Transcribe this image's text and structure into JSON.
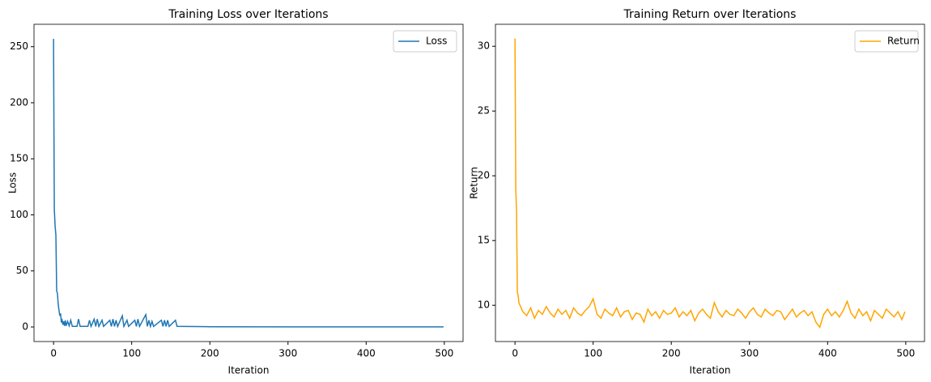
{
  "chart_data": [
    {
      "type": "line",
      "title": "Training Loss over Iterations",
      "x_label": "Iteration",
      "y_label": "Loss",
      "xlim": [
        -25,
        524
      ],
      "ylim": [
        -13,
        270
      ],
      "xticks": [
        0,
        100,
        200,
        300,
        400,
        500
      ],
      "yticks": [
        0,
        50,
        100,
        150,
        200,
        250
      ],
      "legend": "upper right",
      "series": [
        {
          "name": "Loss",
          "color": "#1f77b4",
          "x": [
            0,
            1,
            2,
            3,
            4,
            5,
            6,
            7,
            8,
            9,
            10,
            11,
            12,
            13,
            14,
            15,
            16,
            18,
            20,
            22,
            24,
            30,
            32,
            34,
            44,
            46,
            48,
            52,
            54,
            56,
            58,
            62,
            64,
            72,
            74,
            76,
            78,
            80,
            82,
            88,
            90,
            94,
            96,
            104,
            106,
            108,
            110,
            118,
            120,
            122,
            124,
            126,
            128,
            138,
            140,
            142,
            144,
            146,
            148,
            156,
            158,
            200,
            300,
            400,
            499
          ],
          "values": [
            257,
            105,
            90,
            82,
            32,
            30,
            20,
            15,
            10,
            12,
            4,
            6,
            2,
            5,
            1,
            6,
            1,
            5,
            1,
            6,
            0.5,
            0.5,
            7,
            0.5,
            0.5,
            6,
            0.5,
            7,
            0.5,
            7,
            0.5,
            6,
            0.5,
            6,
            0.5,
            7,
            0.5,
            6,
            0.5,
            10,
            0.5,
            6,
            0.5,
            6,
            0.5,
            7,
            0.5,
            11,
            0.5,
            6,
            0.5,
            5,
            0.5,
            6,
            0.5,
            6,
            0.5,
            6,
            0.5,
            6,
            0.5,
            0.2,
            0.1,
            0.1,
            0.1
          ]
        }
      ]
    },
    {
      "type": "line",
      "title": "Training Return over Iterations",
      "x_label": "Iteration",
      "y_label": "Return",
      "xlim": [
        -25,
        524
      ],
      "ylim": [
        7.2,
        31.7
      ],
      "xticks": [
        0,
        100,
        200,
        300,
        400,
        500
      ],
      "yticks": [
        10,
        15,
        20,
        25,
        30
      ],
      "legend": "upper right",
      "series": [
        {
          "name": "Return",
          "color": "#ffa500",
          "x": [
            0,
            1,
            2,
            3,
            4,
            5,
            10,
            15,
            20,
            25,
            30,
            35,
            40,
            45,
            50,
            55,
            60,
            65,
            70,
            75,
            80,
            85,
            90,
            95,
            100,
            105,
            110,
            115,
            120,
            125,
            130,
            135,
            140,
            145,
            150,
            155,
            160,
            165,
            170,
            175,
            180,
            185,
            190,
            195,
            200,
            205,
            210,
            215,
            220,
            225,
            230,
            235,
            240,
            245,
            250,
            255,
            260,
            265,
            270,
            275,
            280,
            285,
            290,
            295,
            300,
            305,
            310,
            315,
            320,
            325,
            330,
            335,
            340,
            345,
            350,
            355,
            360,
            365,
            370,
            375,
            380,
            385,
            390,
            395,
            400,
            405,
            410,
            415,
            420,
            425,
            430,
            435,
            440,
            445,
            450,
            455,
            460,
            465,
            470,
            475,
            480,
            485,
            490,
            495,
            499
          ],
          "values": [
            30.6,
            19,
            17.2,
            11,
            10.8,
            10.2,
            9.5,
            9.2,
            9.8,
            9.0,
            9.6,
            9.3,
            9.9,
            9.4,
            9.1,
            9.7,
            9.3,
            9.6,
            9.0,
            9.8,
            9.4,
            9.2,
            9.6,
            9.9,
            10.5,
            9.3,
            9.0,
            9.7,
            9.4,
            9.2,
            9.8,
            9.1,
            9.5,
            9.6,
            8.9,
            9.4,
            9.3,
            8.7,
            9.7,
            9.2,
            9.5,
            9.0,
            9.6,
            9.3,
            9.4,
            9.8,
            9.1,
            9.5,
            9.2,
            9.6,
            8.8,
            9.4,
            9.7,
            9.3,
            9.0,
            10.2,
            9.5,
            9.1,
            9.6,
            9.3,
            9.2,
            9.7,
            9.4,
            9.0,
            9.5,
            9.8,
            9.3,
            9.1,
            9.7,
            9.4,
            9.2,
            9.6,
            9.5,
            8.9,
            9.3,
            9.7,
            9.1,
            9.4,
            9.6,
            9.2,
            9.5,
            8.7,
            8.3,
            9.3,
            9.7,
            9.2,
            9.5,
            9.1,
            9.6,
            10.3,
            9.4,
            9.0,
            9.7,
            9.2,
            9.5,
            8.8,
            9.6,
            9.3,
            9.0,
            9.7,
            9.4,
            9.1,
            9.5,
            8.9,
            9.5
          ]
        }
      ]
    }
  ]
}
